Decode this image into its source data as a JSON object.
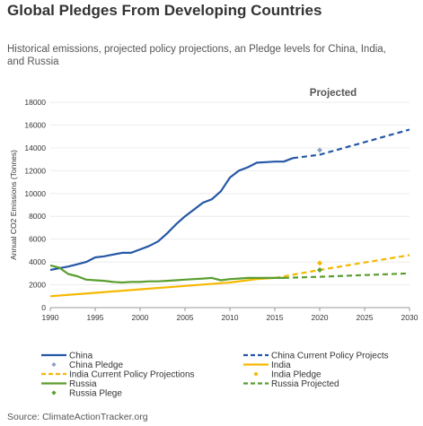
{
  "title": "Global Pledges From Developing Countries",
  "subtitle": "Historical emissions, projected policy projections, an Pledge levels for China, India,  and Russia",
  "source": "Source: ClimateActionTracker.org",
  "colors": {
    "china": "#2457A6",
    "china_pledge": "#8FA1C9",
    "india": "#F5B800",
    "russia": "#5A9E2F"
  },
  "chart_data": {
    "type": "line",
    "xlim": [
      1990,
      2030
    ],
    "ylim": [
      0,
      18000
    ],
    "ylabel": "Annual CO2 Emissions (Tonnes)",
    "annotation": "Projected",
    "x_ticks": [
      "1990",
      "1995",
      "2000",
      "2005",
      "2010",
      "2015",
      "2020",
      "2025",
      "2030"
    ],
    "y_ticks": [
      "0",
      "2000",
      "4000",
      "6000",
      "8000",
      "10000",
      "12000",
      "14000",
      "16000",
      "18000"
    ],
    "series": [
      {
        "name": "China",
        "style": "solid",
        "color": "#2457A6",
        "x": [
          1990,
          1991,
          1992,
          1993,
          1994,
          1995,
          1996,
          1997,
          1998,
          1999,
          2000,
          2001,
          2002,
          2003,
          2004,
          2005,
          2006,
          2007,
          2008,
          2009,
          2010,
          2011,
          2012,
          2013,
          2014,
          2015,
          2016,
          2017
        ],
        "y": [
          3300,
          3450,
          3600,
          3800,
          4000,
          4400,
          4500,
          4650,
          4800,
          4800,
          5100,
          5400,
          5800,
          6500,
          7300,
          8000,
          8600,
          9200,
          9500,
          10200,
          11400,
          12000,
          12300,
          12700,
          12750,
          12800,
          12800,
          13100
        ]
      },
      {
        "name": "China Current Policy Projects",
        "style": "dashed",
        "color": "#2457A6",
        "x": [
          2017,
          2020,
          2025,
          2030
        ],
        "y": [
          13100,
          13400,
          14500,
          15600
        ]
      },
      {
        "name": "China Pledge",
        "style": "marker",
        "color": "#8FA1C9",
        "x": [
          2020
        ],
        "y": [
          13800
        ]
      },
      {
        "name": "India",
        "style": "solid",
        "color": "#F5B800",
        "x": [
          1990,
          1995,
          2000,
          2005,
          2010,
          2013,
          2015
        ],
        "y": [
          1000,
          1300,
          1600,
          1900,
          2200,
          2500,
          2600
        ]
      },
      {
        "name": "India Current Policy Projections",
        "style": "dashed",
        "color": "#F5B800",
        "x": [
          2015,
          2020,
          2025,
          2030
        ],
        "y": [
          2600,
          3300,
          3950,
          4600
        ]
      },
      {
        "name": "India Pledge",
        "style": "marker",
        "color": "#F5B800",
        "x": [
          2020
        ],
        "y": [
          3900
        ]
      },
      {
        "name": "Russia",
        "style": "solid",
        "color": "#5A9E2F",
        "x": [
          1990,
          1991,
          1992,
          1993,
          1994,
          1995,
          1996,
          1997,
          1998,
          1999,
          2000,
          2001,
          2002,
          2003,
          2004,
          2005,
          2006,
          2007,
          2008,
          2009,
          2010,
          2011,
          2012,
          2013,
          2014,
          2015,
          2016
        ],
        "y": [
          3700,
          3500,
          2950,
          2750,
          2450,
          2400,
          2350,
          2250,
          2200,
          2250,
          2250,
          2300,
          2300,
          2350,
          2400,
          2450,
          2500,
          2550,
          2600,
          2400,
          2500,
          2550,
          2600,
          2600,
          2600,
          2600,
          2600
        ]
      },
      {
        "name": "Russia Projected",
        "style": "dashed",
        "color": "#5A9E2F",
        "x": [
          2016,
          2020,
          2025,
          2030
        ],
        "y": [
          2600,
          2700,
          2850,
          3000
        ]
      },
      {
        "name": "Russia Plege",
        "style": "marker",
        "color": "#5A9E2F",
        "x": [
          2020
        ],
        "y": [
          3300
        ]
      }
    ],
    "legend": [
      {
        "label": "China",
        "style": "solid",
        "color": "#2457A6"
      },
      {
        "label": "China Current Policy Projects",
        "style": "dashed",
        "color": "#2457A6"
      },
      {
        "label": "China Pledge",
        "style": "marker",
        "color": "#8FA1C9"
      },
      {
        "label": "India",
        "style": "solid",
        "color": "#F5B800"
      },
      {
        "label": "India Current Policy Projections",
        "style": "dashed",
        "color": "#F5B800"
      },
      {
        "label": "India Pledge",
        "style": "marker",
        "color": "#F5B800"
      },
      {
        "label": "Russia",
        "style": "solid",
        "color": "#5A9E2F"
      },
      {
        "label": "Russia Projected",
        "style": "dashed",
        "color": "#5A9E2F"
      },
      {
        "label": "Russia Plege",
        "style": "marker",
        "color": "#5A9E2F"
      }
    ]
  }
}
